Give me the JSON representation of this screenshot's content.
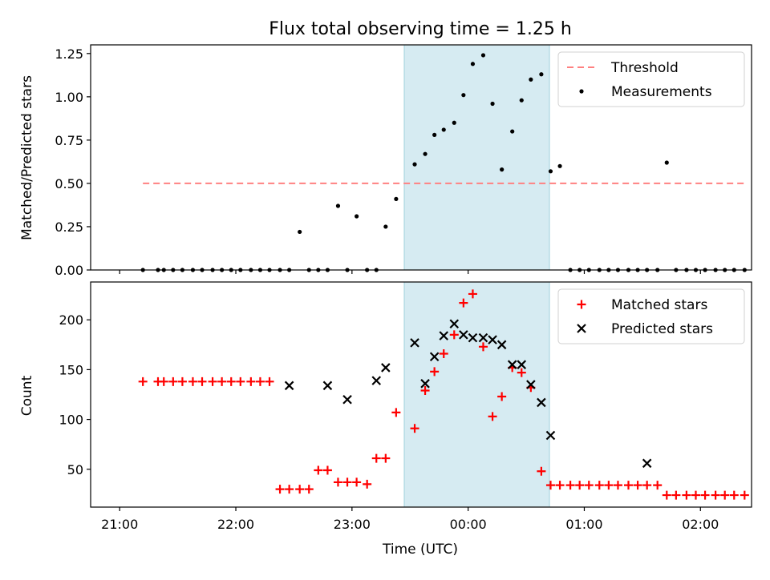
{
  "chart_data": [
    {
      "type": "scatter",
      "title": "Flux total observing time = 1.25 h",
      "xlabel": "",
      "ylabel": "Matched/Predicted stars",
      "xlim": [
        -0.25,
        5.44
      ],
      "ylim": [
        0,
        1.3
      ],
      "yticks": [
        0,
        0.25,
        0.5,
        0.75,
        1.0,
        1.25
      ],
      "ytick_labels": [
        "0.00",
        "0.25",
        "0.50",
        "0.75",
        "1.00",
        "1.25"
      ],
      "xticks": [
        0,
        1,
        2,
        3,
        4,
        5
      ],
      "xtick_labels": [
        "",
        "",
        "",
        "",
        "",
        ""
      ],
      "grid": false,
      "legend": "top-right",
      "shaded_region": {
        "x0": 2.45,
        "x1": 3.7,
        "color": "#add8e6"
      },
      "series": [
        {
          "name": "Threshold",
          "kind": "dashed-line",
          "color": "#ff8080",
          "x": [
            0.2,
            5.4
          ],
          "y": [
            0.5,
            0.5
          ]
        },
        {
          "name": "Measurements",
          "kind": "points",
          "color": "#000000",
          "x": [
            0.2,
            0.33,
            0.38,
            0.46,
            0.54,
            0.63,
            0.71,
            0.8,
            0.88,
            0.96,
            1.04,
            1.13,
            1.21,
            1.29,
            1.38,
            1.46,
            1.55,
            1.63,
            1.71,
            1.79,
            1.88,
            1.96,
            2.04,
            2.13,
            2.21,
            2.29,
            2.38,
            2.54,
            2.63,
            2.71,
            2.79,
            2.88,
            2.96,
            3.04,
            3.13,
            3.21,
            3.29,
            3.38,
            3.46,
            3.54,
            3.63,
            3.71,
            3.79,
            3.88,
            3.96,
            4.04,
            4.13,
            4.21,
            4.29,
            4.38,
            4.46,
            4.54,
            4.63,
            4.71,
            4.79,
            4.88,
            4.96,
            5.04,
            5.13,
            5.21,
            5.29,
            5.38
          ],
          "y": [
            0,
            0,
            0,
            0,
            0,
            0,
            0,
            0,
            0,
            0,
            0,
            0,
            0,
            0,
            0,
            0,
            0.22,
            0,
            0,
            0,
            0.37,
            0,
            0.31,
            0,
            0,
            0.25,
            0.41,
            0.61,
            0.67,
            0.78,
            0.81,
            0.85,
            1.01,
            1.19,
            1.24,
            0.96,
            0.58,
            0.8,
            0.98,
            1.1,
            1.13,
            0.57,
            0.6,
            0,
            0,
            0,
            0,
            0,
            0,
            0,
            0,
            0,
            0,
            0.62,
            0,
            0,
            0,
            0,
            0,
            0,
            0,
            0
          ]
        }
      ]
    },
    {
      "type": "scatter",
      "title": "",
      "xlabel": "Time (UTC)",
      "ylabel": "Count",
      "xlim": [
        -0.25,
        5.44
      ],
      "ylim": [
        12,
        238
      ],
      "yticks": [
        50,
        100,
        150,
        200
      ],
      "ytick_labels": [
        "50",
        "100",
        "150",
        "200"
      ],
      "xticks": [
        0,
        1,
        2,
        3,
        4,
        5
      ],
      "xtick_labels": [
        "21:00",
        "22:00",
        "23:00",
        "00:00",
        "01:00",
        "02:00"
      ],
      "grid": false,
      "legend": "top-right",
      "shaded_region": {
        "x0": 2.45,
        "x1": 3.7,
        "color": "#add8e6"
      },
      "series": [
        {
          "name": "Matched stars",
          "kind": "plus",
          "color": "#ff0000",
          "x": [
            0.2,
            0.33,
            0.38,
            0.46,
            0.54,
            0.63,
            0.71,
            0.8,
            0.88,
            0.96,
            1.04,
            1.13,
            1.21,
            1.29,
            1.38,
            1.46,
            1.55,
            1.63,
            1.71,
            1.79,
            1.88,
            1.96,
            2.04,
            2.13,
            2.21,
            2.29,
            2.38,
            2.54,
            2.63,
            2.71,
            2.79,
            2.88,
            2.96,
            3.04,
            3.13,
            3.21,
            3.29,
            3.38,
            3.46,
            3.54,
            3.63,
            3.71,
            3.79,
            3.88,
            3.96,
            4.04,
            4.13,
            4.21,
            4.29,
            4.38,
            4.46,
            4.54,
            4.63,
            4.71,
            4.79,
            4.88,
            4.96,
            5.04,
            5.13,
            5.21,
            5.29,
            5.38
          ],
          "y": [
            138,
            138,
            138,
            138,
            138,
            138,
            138,
            138,
            138,
            138,
            138,
            138,
            138,
            138,
            30,
            30,
            30,
            30,
            49,
            49,
            37,
            37,
            37,
            35,
            61,
            61,
            107,
            91,
            129,
            148,
            166,
            185,
            217,
            226,
            173,
            103,
            123,
            152,
            147,
            132,
            48,
            34,
            34,
            34,
            34,
            34,
            34,
            34,
            34,
            34,
            34,
            34,
            34,
            24,
            24,
            24,
            24,
            24,
            24,
            24,
            24,
            24
          ]
        },
        {
          "name": "Predicted stars",
          "kind": "cross",
          "color": "#000000",
          "x": [
            1.46,
            1.79,
            1.96,
            2.21,
            2.29,
            2.54,
            2.63,
            2.71,
            2.79,
            2.88,
            2.96,
            3.04,
            3.13,
            3.21,
            3.29,
            3.38,
            3.46,
            3.54,
            3.63,
            3.71,
            4.54
          ],
          "y": [
            134,
            134,
            120,
            139,
            152,
            177,
            136,
            163,
            184,
            196,
            185,
            182,
            182,
            180,
            175,
            155,
            155,
            135,
            117,
            84,
            56
          ]
        }
      ]
    }
  ]
}
